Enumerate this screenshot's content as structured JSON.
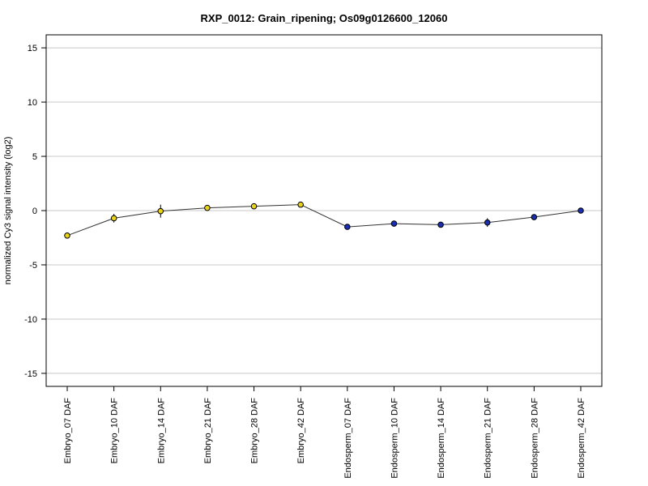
{
  "chart_data": {
    "type": "line",
    "title": "RXP_0012: Grain_ripening; Os09g0126600_12060",
    "ylabel": "normalized Cy3 signal intensity (log2)",
    "xlabel": "",
    "ylim": [
      -16.2,
      16.2
    ],
    "yticks": [
      -15,
      -10,
      -5,
      0,
      5,
      10,
      15
    ],
    "grid": true,
    "categories": [
      "Embryo_07 DAF",
      "Embryo_10 DAF",
      "Embryo_14 DAF",
      "Embryo_21 DAF",
      "Embryo_28 DAF",
      "Embryo_42 DAF",
      "Endosperm_07 DAF",
      "Endosperm_10 DAF",
      "Endosperm_14 DAF",
      "Endosperm_21 DAF",
      "Endosperm_28 DAF",
      "Endosperm_42 DAF"
    ],
    "values": [
      -2.3,
      -0.7,
      -0.05,
      0.25,
      0.4,
      0.55,
      -1.5,
      -1.2,
      -1.3,
      -1.1,
      -0.6,
      0.0
    ],
    "errors": [
      0.0,
      0.4,
      0.6,
      0.0,
      0.0,
      0.0,
      0.0,
      0.0,
      0.0,
      0.4,
      0.0,
      0.0
    ],
    "point_colors": [
      "#e8d21a",
      "#e8d21a",
      "#e8d21a",
      "#e8d21a",
      "#e8d21a",
      "#e8d21a",
      "#1a2fb0",
      "#1a2fb0",
      "#1a2fb0",
      "#1a2fb0",
      "#1a2fb0",
      "#1a2fb0"
    ],
    "line_color": "#333333",
    "grid_color": "#c8c8c8"
  }
}
